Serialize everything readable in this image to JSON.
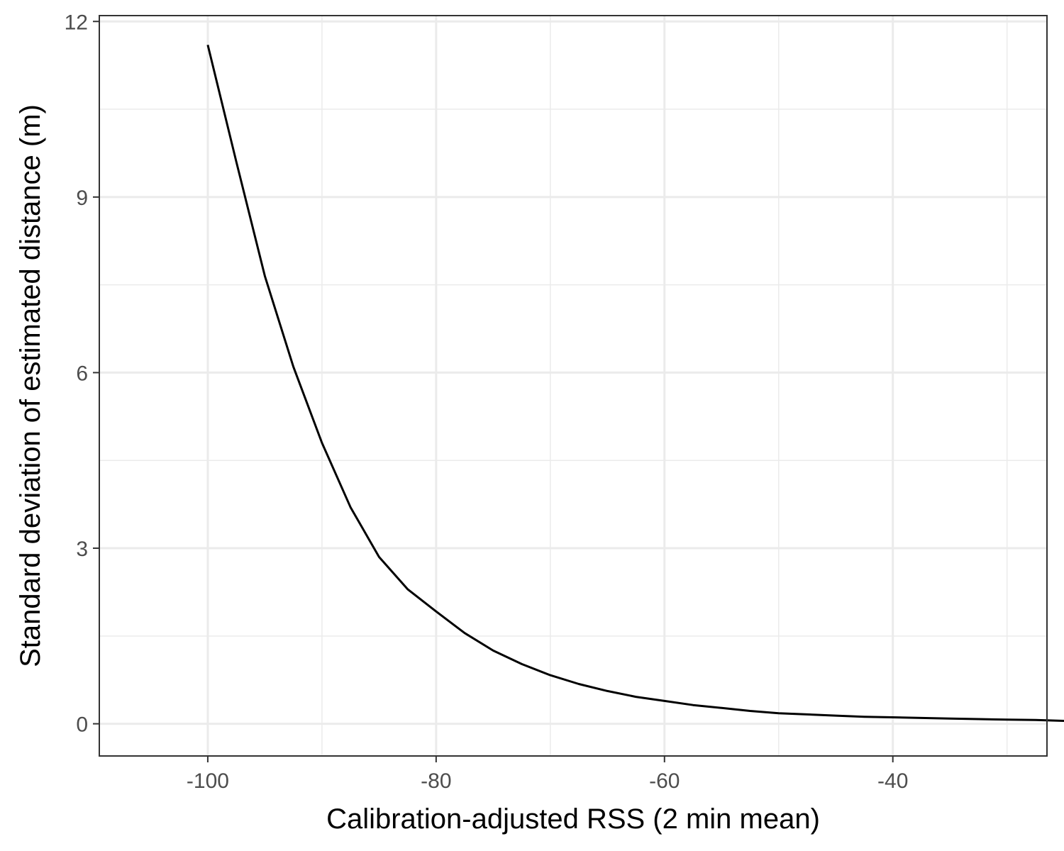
{
  "chart_data": {
    "type": "line",
    "title": "",
    "xlabel": "Calibration-adjusted RSS (2 min mean)",
    "ylabel": "Standard deviation of estimated distance (m)",
    "xlim": [
      -109.5,
      -26.5
    ],
    "ylim": [
      -0.55,
      12.1
    ],
    "x_ticks": [
      -100,
      -80,
      -60,
      -40
    ],
    "x_tick_labels": [
      "-100",
      "-80",
      "-60",
      "-40"
    ],
    "y_ticks": [
      0,
      3,
      6,
      9,
      12
    ],
    "y_tick_labels": [
      "0",
      "3",
      "6",
      "9",
      "12"
    ],
    "grid": true,
    "legend": "none",
    "series": [
      {
        "color": "#000000",
        "x": [
          -100,
          -97.5,
          -95,
          -92.5,
          -90,
          -87.5,
          -85,
          -82.5,
          -80,
          -77.5,
          -75,
          -72.5,
          -70,
          -67.5,
          -65,
          -62.5,
          -60,
          -57.5,
          -55,
          -52.5,
          -50,
          -47.5,
          -45,
          -42.5,
          -40,
          -37.5,
          -35,
          -32.5,
          -30,
          -27.5,
          -25
        ],
        "y": [
          11.6,
          9.6,
          7.65,
          6.1,
          4.8,
          3.7,
          2.85,
          2.3,
          1.92,
          1.55,
          1.25,
          1.02,
          0.83,
          0.68,
          0.56,
          0.46,
          0.39,
          0.32,
          0.27,
          0.22,
          0.18,
          0.16,
          0.14,
          0.12,
          0.11,
          0.1,
          0.09,
          0.08,
          0.07,
          0.065,
          0.05
        ]
      }
    ]
  }
}
